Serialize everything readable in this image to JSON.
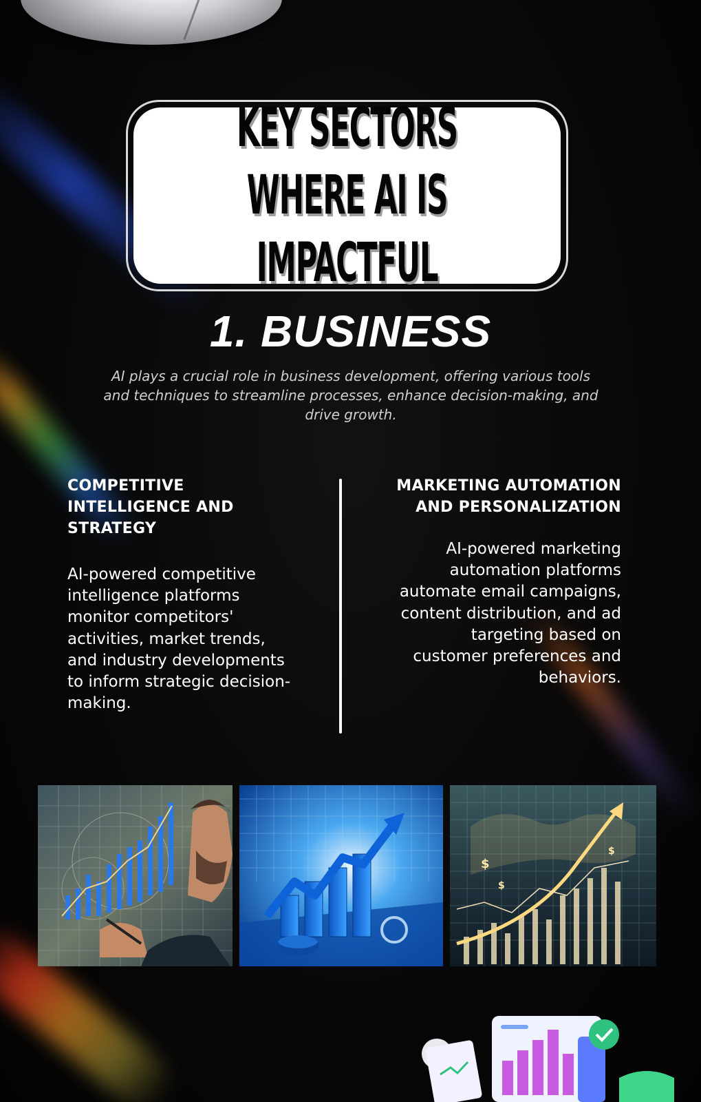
{
  "title": "KEY SECTORS WHERE AI IS IMPACTFUL",
  "section": {
    "heading": "1. BUSINESS",
    "intro": "AI plays a crucial role in business development, offering various tools and techniques to streamline processes, enhance decision-making, and drive growth."
  },
  "columns": {
    "left": {
      "heading": "COMPETITIVE INTELLIGENCE AND STRATEGY",
      "body": "AI-powered competitive intelligence platforms monitor competitors' activities, market trends, and industry developments to inform strategic decision-making."
    },
    "right": {
      "heading": "MARKETING AUTOMATION AND PERSONALIZATION",
      "body": "AI-powered marketing automation platforms automate email campaigns, content distribution, and ad targeting based on customer preferences and behaviors."
    }
  },
  "images": {
    "tile1": "analyst-charts-illustration",
    "tile2": "blue-growth-chart-illustration",
    "tile3": "gold-finance-graph-illustration"
  },
  "colors": {
    "background": "#050505",
    "title_box": "#ffffff",
    "text": "#ffffff",
    "intro_text": "#cfcfcf"
  }
}
